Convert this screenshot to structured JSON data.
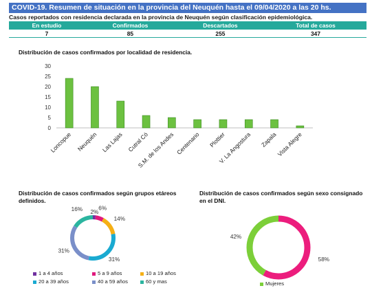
{
  "header": {
    "banner": "COVID-19. Resumen de situación en la provincia del Neuquén hasta el 09/04/2020  a las 20 hs.",
    "subtitle": "Casos reportados con residencia declarada en la provincia de Neuquén según clasificación epidemiológica."
  },
  "summary_table": {
    "headers": [
      "En estudio",
      "Confirmados",
      "Descartados",
      "Total de casos"
    ],
    "values": [
      "7",
      "85",
      "255",
      "347"
    ]
  },
  "colors": {
    "banner": "#4472c4",
    "table_header": "#25a99b",
    "bar": "#6cc140",
    "women": "#ec1d7d",
    "men": "#7ccf39"
  },
  "chart_data": [
    {
      "type": "bar",
      "title": "Distribución de casos confirmados por localidad de residencia.",
      "categories": [
        "Loncopue",
        "Neuquén",
        "Las Lajas",
        "Cutral Có",
        "S.M. de los Andes",
        "Centenario",
        "Plottier",
        "V. La Angostura",
        "Zapala",
        "Vista Alegre"
      ],
      "values": [
        24,
        20,
        13,
        6,
        5,
        4,
        4,
        4,
        4,
        1
      ],
      "ylim": [
        0,
        30
      ],
      "yticks": [
        0,
        5,
        10,
        15,
        20,
        25,
        30
      ],
      "grid": false
    },
    {
      "type": "pie",
      "title": "Distribución de casos confirmados según grupos etáreos definidos.",
      "categories": [
        "1 a 4 años",
        "5 a 9 años",
        "10 a 19 años",
        "20 a 39 años",
        "40 a 59 años",
        "60 y mas"
      ],
      "values": [
        2,
        6,
        14,
        31,
        31,
        16
      ],
      "labels": [
        "2%",
        "6%",
        "14%",
        "31%",
        "31%",
        "16%"
      ],
      "colors": [
        "#7030a0",
        "#e0197d",
        "#f5b016",
        "#1aaad1",
        "#7a8fc9",
        "#2bb5a0"
      ],
      "legend": "bottom"
    },
    {
      "type": "pie",
      "title": "Distribución de casos confirmados según sexo consignado en el DNI.",
      "categories": [
        "Mujeres",
        ""
      ],
      "values": [
        58,
        42
      ],
      "labels": [
        "58%",
        "42%"
      ],
      "colors": [
        "#ec1d7d",
        "#7ccf39"
      ],
      "legend_items": [
        "Mujeres"
      ],
      "legend": "bottom"
    }
  ]
}
